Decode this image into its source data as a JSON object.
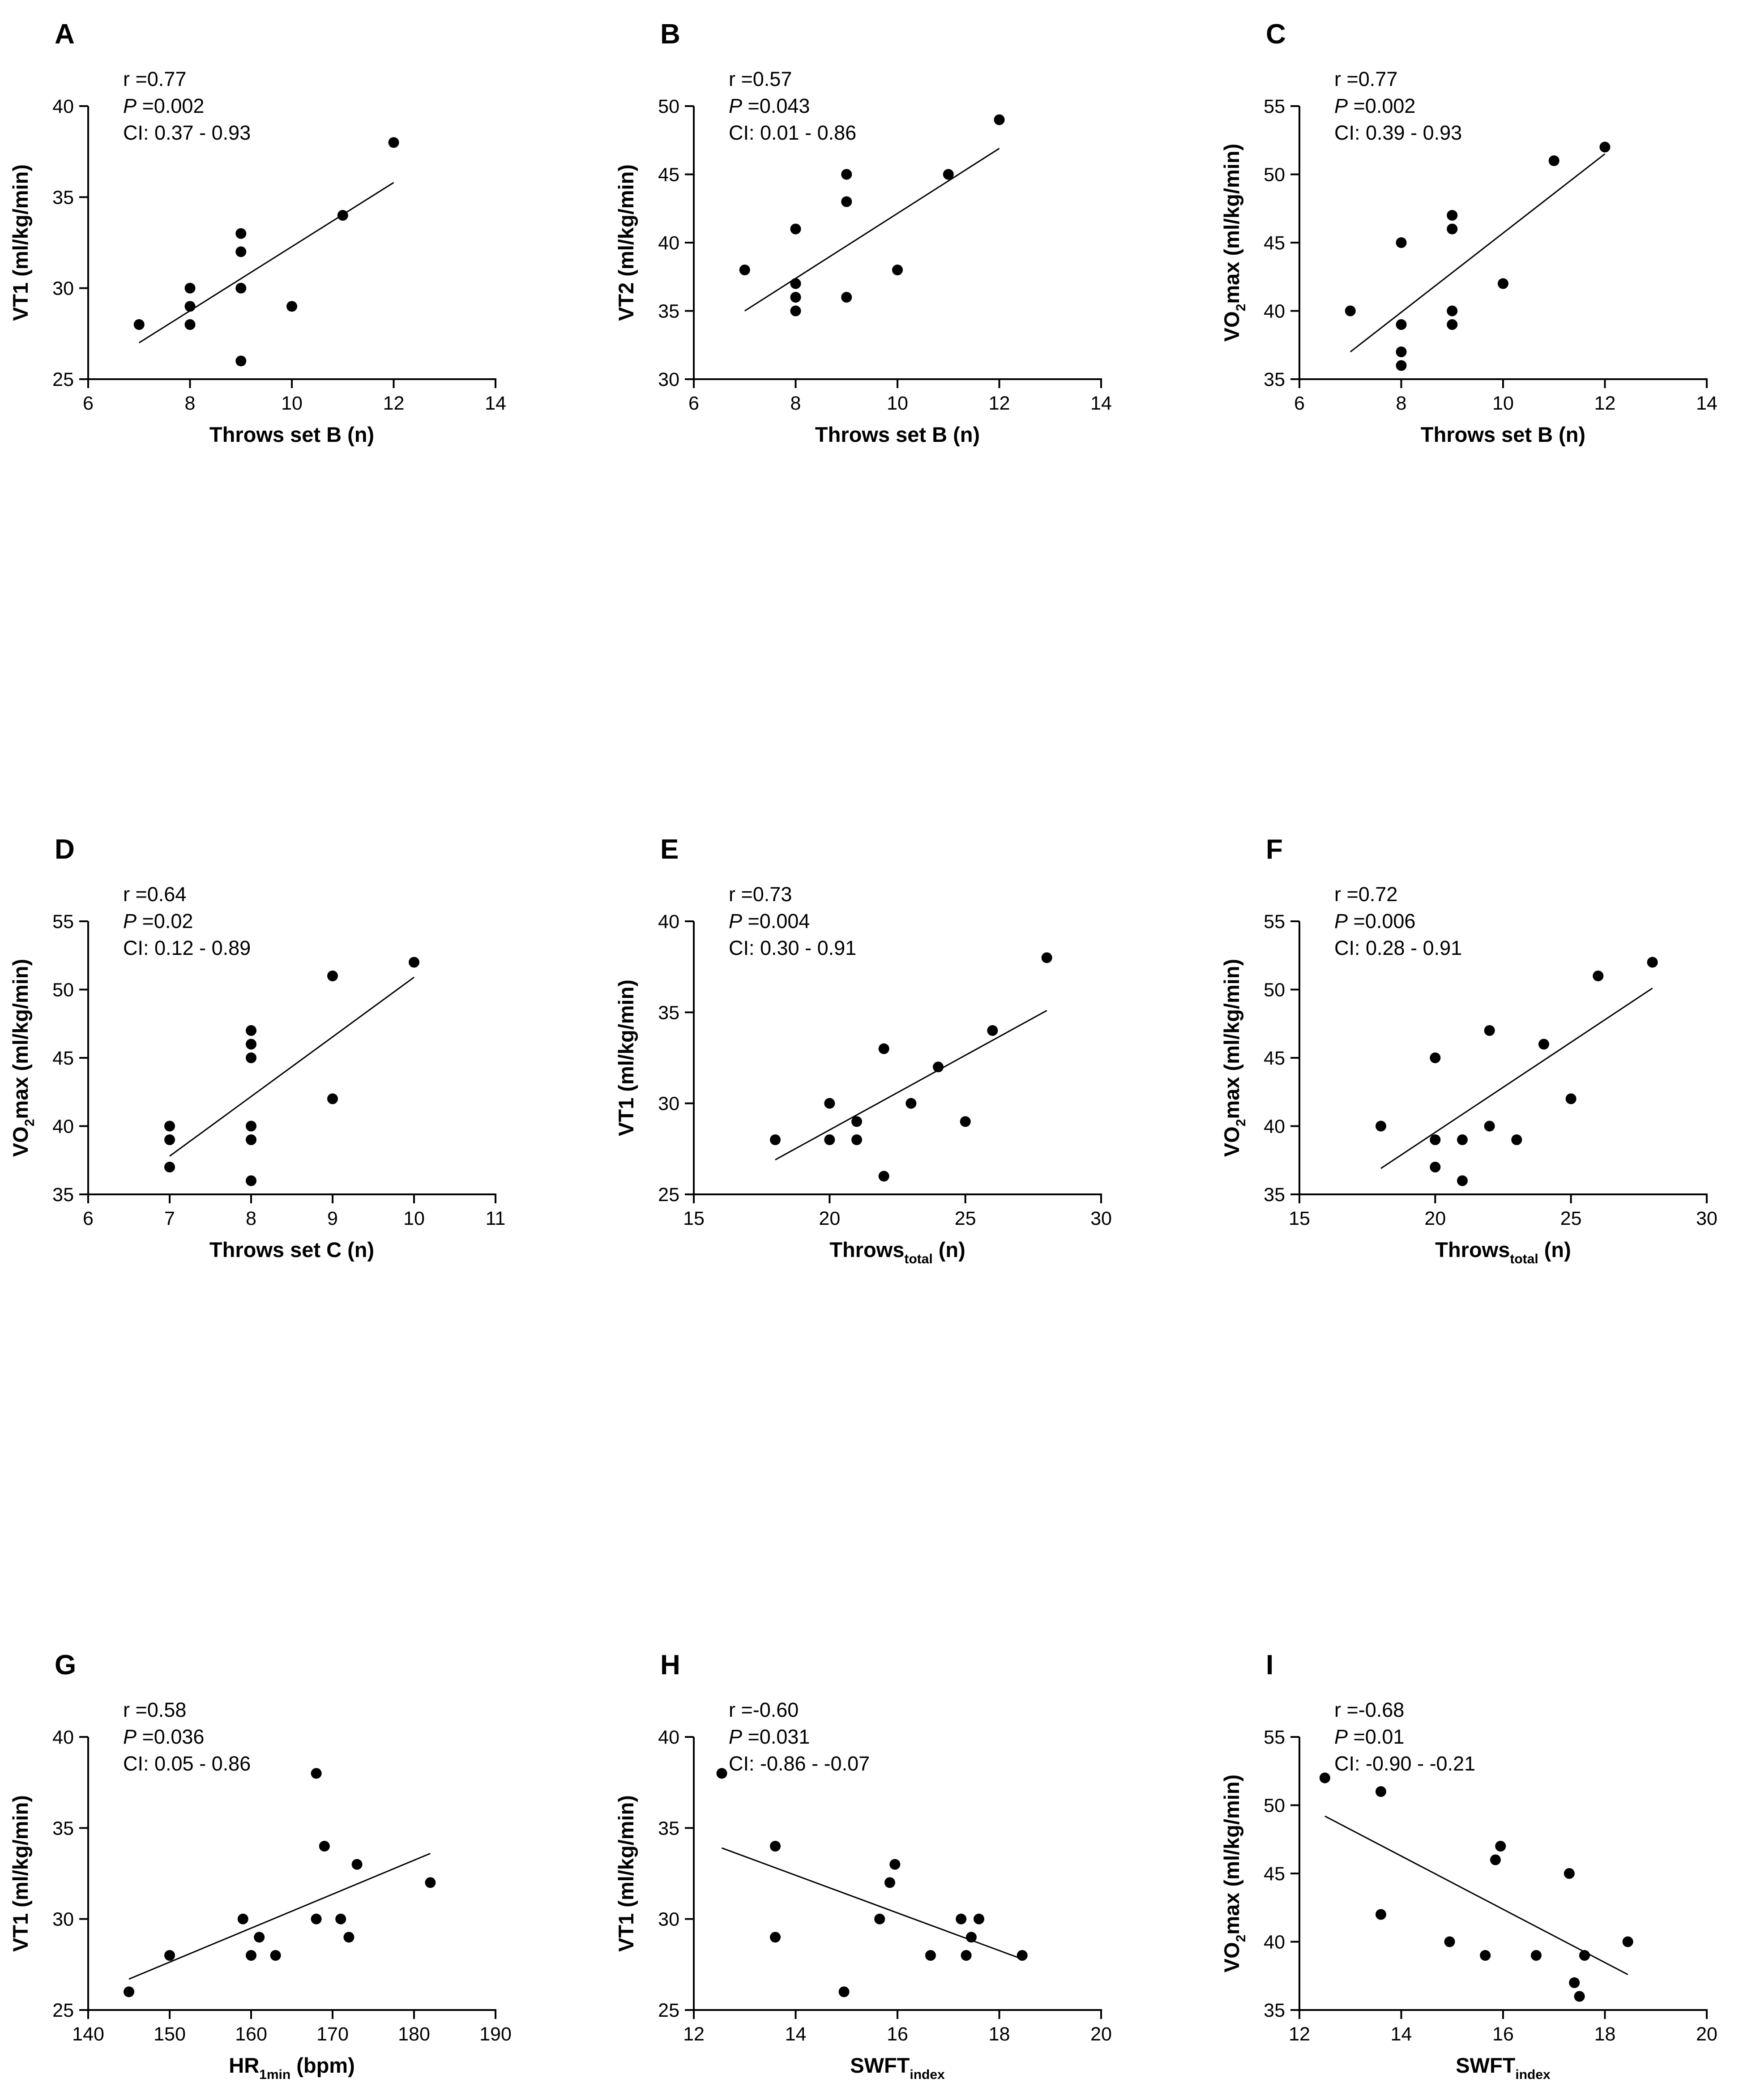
{
  "chart_data": [
    {
      "panel": "A",
      "type": "scatter",
      "stats": {
        "r": "r =0.77",
        "p_label": "P",
        "p": " =0.002",
        "ci": "CI: 0.37 - 0.93"
      },
      "xlabel": {
        "main": "Throws set B (n)",
        "sub": ""
      },
      "ylabel": {
        "main": "VT1 (ml/kg/min)",
        "sub": ""
      },
      "xlim": [
        6,
        14
      ],
      "xticks": [
        6,
        8,
        10,
        12,
        14
      ],
      "ylim": [
        25,
        40
      ],
      "yticks": [
        25,
        30,
        35,
        40
      ],
      "points": [
        [
          7,
          28
        ],
        [
          8,
          30
        ],
        [
          8,
          29
        ],
        [
          8,
          28
        ],
        [
          9,
          33
        ],
        [
          9,
          32
        ],
        [
          9,
          30
        ],
        [
          9,
          26
        ],
        [
          10,
          29
        ],
        [
          11,
          34
        ],
        [
          12,
          38
        ]
      ],
      "fit": [
        [
          7,
          27
        ],
        [
          12,
          35.8
        ]
      ]
    },
    {
      "panel": "B",
      "type": "scatter",
      "stats": {
        "r": "r =0.57",
        "p_label": "P",
        "p": " =0.043",
        "ci": "CI: 0.01 - 0.86"
      },
      "xlabel": {
        "main": "Throws set B (n)",
        "sub": ""
      },
      "ylabel": {
        "main": "VT2 (ml/kg/min)",
        "sub": ""
      },
      "xlim": [
        6,
        14
      ],
      "xticks": [
        6,
        8,
        10,
        12,
        14
      ],
      "ylim": [
        30,
        50
      ],
      "yticks": [
        30,
        35,
        40,
        45,
        50
      ],
      "points": [
        [
          7,
          38
        ],
        [
          8,
          41
        ],
        [
          8,
          37
        ],
        [
          8,
          36
        ],
        [
          8,
          35
        ],
        [
          9,
          45
        ],
        [
          9,
          43
        ],
        [
          9,
          36
        ],
        [
          10,
          38
        ],
        [
          11,
          45
        ],
        [
          12,
          49
        ]
      ],
      "fit": [
        [
          7,
          35
        ],
        [
          12,
          46.9
        ]
      ]
    },
    {
      "panel": "C",
      "type": "scatter",
      "stats": {
        "r": "r =0.77",
        "p_label": "P",
        "p": " =0.002",
        "ci": "CI: 0.39 - 0.93"
      },
      "xlabel": {
        "main": "Throws set B (n)",
        "sub": ""
      },
      "ylabel": {
        "pre": "VO",
        "sub": "2",
        "post": "max (ml/kg/min)"
      },
      "xlim": [
        6,
        14
      ],
      "xticks": [
        6,
        8,
        10,
        12,
        14
      ],
      "ylim": [
        35,
        55
      ],
      "yticks": [
        35,
        40,
        45,
        50,
        55
      ],
      "points": [
        [
          7,
          40
        ],
        [
          8,
          45
        ],
        [
          8,
          39
        ],
        [
          8,
          37
        ],
        [
          8,
          36
        ],
        [
          9,
          47
        ],
        [
          9,
          46
        ],
        [
          9,
          40
        ],
        [
          9,
          39
        ],
        [
          10,
          42
        ],
        [
          11,
          51
        ],
        [
          12,
          52
        ]
      ],
      "fit": [
        [
          7,
          37
        ],
        [
          12,
          51.5
        ]
      ]
    },
    {
      "panel": "D",
      "type": "scatter",
      "stats": {
        "r": "r =0.64",
        "p_label": "P",
        "p": " =0.02",
        "ci": "CI: 0.12 - 0.89"
      },
      "xlabel": {
        "main": "Throws set C (n)",
        "sub": ""
      },
      "ylabel": {
        "pre": "VO",
        "sub": "2",
        "post": "max (ml/kg/min)"
      },
      "xlim": [
        6,
        11
      ],
      "xticks": [
        6,
        7,
        8,
        9,
        10,
        11
      ],
      "ylim": [
        35,
        55
      ],
      "yticks": [
        35,
        40,
        45,
        50,
        55
      ],
      "points": [
        [
          7,
          40
        ],
        [
          7,
          39
        ],
        [
          7,
          37
        ],
        [
          8,
          47
        ],
        [
          8,
          46
        ],
        [
          8,
          45
        ],
        [
          8,
          40
        ],
        [
          8,
          39
        ],
        [
          8,
          36
        ],
        [
          9,
          51
        ],
        [
          9,
          42
        ],
        [
          10,
          52
        ]
      ],
      "fit": [
        [
          7,
          37.8
        ],
        [
          10,
          50.9
        ]
      ]
    },
    {
      "panel": "E",
      "type": "scatter",
      "stats": {
        "r": "r =0.73",
        "p_label": "P",
        "p": " =0.004",
        "ci": "CI: 0.30 - 0.91"
      },
      "xlabel": {
        "main": "Throws",
        "sub": "total",
        "post": " (n)"
      },
      "ylabel": {
        "main": "VT1 (ml/kg/min)",
        "sub": ""
      },
      "xlim": [
        15,
        30
      ],
      "xticks": [
        15,
        20,
        25,
        30
      ],
      "ylim": [
        25,
        40
      ],
      "yticks": [
        25,
        30,
        35,
        40
      ],
      "points": [
        [
          18,
          28
        ],
        [
          20,
          30
        ],
        [
          20,
          28
        ],
        [
          21,
          29
        ],
        [
          21,
          28
        ],
        [
          22,
          33
        ],
        [
          22,
          26
        ],
        [
          23,
          30
        ],
        [
          24,
          32
        ],
        [
          25,
          29
        ],
        [
          26,
          34
        ],
        [
          28,
          38
        ]
      ],
      "fit": [
        [
          18,
          26.9
        ],
        [
          28,
          35.1
        ]
      ]
    },
    {
      "panel": "F",
      "type": "scatter",
      "stats": {
        "r": "r =0.72",
        "p_label": "P",
        "p": " =0.006",
        "ci": "CI: 0.28 - 0.91"
      },
      "xlabel": {
        "main": "Throws",
        "sub": "total",
        "post": " (n)"
      },
      "ylabel": {
        "pre": "VO",
        "sub": "2",
        "post": "max (ml/kg/min)"
      },
      "xlim": [
        15,
        30
      ],
      "xticks": [
        15,
        20,
        25,
        30
      ],
      "ylim": [
        35,
        55
      ],
      "yticks": [
        35,
        40,
        45,
        50,
        55
      ],
      "points": [
        [
          18,
          40
        ],
        [
          20,
          45
        ],
        [
          20,
          39
        ],
        [
          20,
          37
        ],
        [
          21,
          39
        ],
        [
          21,
          36
        ],
        [
          22,
          47
        ],
        [
          22,
          40
        ],
        [
          23,
          39
        ],
        [
          24,
          46
        ],
        [
          25,
          42
        ],
        [
          26,
          51
        ],
        [
          28,
          52
        ]
      ],
      "fit": [
        [
          18,
          36.9
        ],
        [
          28,
          50.1
        ]
      ]
    },
    {
      "panel": "G",
      "type": "scatter",
      "stats": {
        "r": "r =0.58",
        "p_label": "P",
        "p": " =0.036",
        "ci": "CI: 0.05 - 0.86"
      },
      "xlabel": {
        "main": "HR",
        "sub": "1min",
        "post": " (bpm)"
      },
      "ylabel": {
        "main": "VT1 (ml/kg/min)",
        "sub": ""
      },
      "xlim": [
        140,
        190
      ],
      "xticks": [
        140,
        150,
        160,
        170,
        180,
        190
      ],
      "ylim": [
        25,
        40
      ],
      "yticks": [
        25,
        30,
        35,
        40
      ],
      "points": [
        [
          145,
          26
        ],
        [
          150,
          28
        ],
        [
          159,
          30
        ],
        [
          160,
          28
        ],
        [
          161,
          29
        ],
        [
          163,
          28
        ],
        [
          168,
          38
        ],
        [
          168,
          30
        ],
        [
          169,
          34
        ],
        [
          171,
          30
        ],
        [
          172,
          29
        ],
        [
          173,
          33
        ],
        [
          182,
          32
        ]
      ],
      "fit": [
        [
          145,
          26.7
        ],
        [
          182,
          33.6
        ]
      ]
    },
    {
      "panel": "H",
      "type": "scatter",
      "stats": {
        "r": "r =-0.60",
        "p_label": "P",
        "p": " =0.031",
        "ci": "CI: -0.86 - -0.07"
      },
      "xlabel": {
        "main": "SWFT",
        "sub": "index",
        "post": ""
      },
      "ylabel": {
        "main": "VT1 (ml/kg/min)",
        "sub": ""
      },
      "xlim": [
        12,
        20
      ],
      "xticks": [
        12,
        14,
        16,
        18,
        20
      ],
      "ylim": [
        25,
        40
      ],
      "yticks": [
        25,
        30,
        35,
        40
      ],
      "points": [
        [
          12.55,
          38
        ],
        [
          13.6,
          34
        ],
        [
          13.6,
          29
        ],
        [
          14.95,
          26
        ],
        [
          15.65,
          30
        ],
        [
          15.85,
          32
        ],
        [
          15.95,
          33
        ],
        [
          16.65,
          28
        ],
        [
          17.25,
          30
        ],
        [
          17.35,
          28
        ],
        [
          17.45,
          29
        ],
        [
          17.6,
          30
        ],
        [
          18.45,
          28
        ]
      ],
      "fit": [
        [
          12.55,
          33.9
        ],
        [
          18.45,
          27.8
        ]
      ]
    },
    {
      "panel": "I",
      "type": "scatter",
      "stats": {
        "r": "r =-0.68",
        "p_label": "P",
        "p": " =0.01",
        "ci": "CI: -0.90 - -0.21"
      },
      "xlabel": {
        "main": "SWFT",
        "sub": "index",
        "post": ""
      },
      "ylabel": {
        "pre": "VO",
        "sub": "2",
        "post": "max (ml/kg/min)"
      },
      "xlim": [
        12,
        20
      ],
      "xticks": [
        12,
        14,
        16,
        18,
        20
      ],
      "ylim": [
        35,
        55
      ],
      "yticks": [
        35,
        40,
        45,
        50,
        55
      ],
      "points": [
        [
          12.5,
          52
        ],
        [
          13.6,
          51
        ],
        [
          13.6,
          42
        ],
        [
          14.95,
          40
        ],
        [
          15.65,
          39
        ],
        [
          15.85,
          46
        ],
        [
          15.95,
          47
        ],
        [
          16.65,
          39
        ],
        [
          17.3,
          45
        ],
        [
          17.4,
          37
        ],
        [
          17.5,
          36
        ],
        [
          17.6,
          39
        ],
        [
          18.45,
          40
        ]
      ],
      "fit": [
        [
          12.5,
          49.2
        ],
        [
          18.45,
          37.6
        ]
      ]
    }
  ],
  "colors": {
    "ink": "#000000",
    "background": "#ffffff"
  }
}
